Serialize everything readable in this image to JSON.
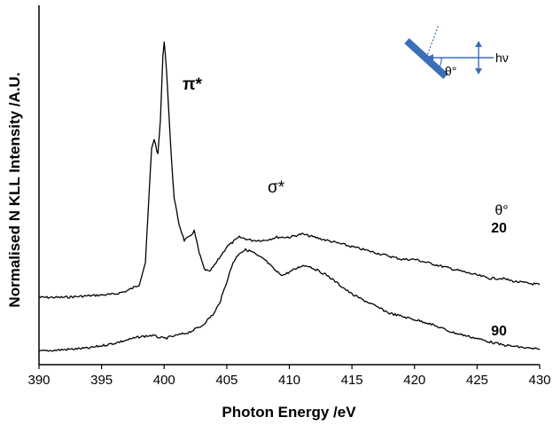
{
  "chart_data": {
    "type": "line",
    "xlabel": "Photon Energy /eV",
    "ylabel": "Normalised N KLL Intensity /A.U.",
    "xlim": [
      390,
      430
    ],
    "xticks": [
      390,
      395,
      400,
      405,
      410,
      415,
      420,
      425,
      430
    ],
    "yticks_shown": false,
    "grid": false,
    "legend_title": "θ°",
    "annotations": {
      "pi_star": "π*",
      "sigma_star": "σ*",
      "inset_angle": "θ°",
      "inset_photon": "hν"
    },
    "colors": {
      "line": "#000000",
      "inset_sample": "#3a6fb8",
      "inset_beam": "#3a6fb8"
    },
    "series": [
      {
        "name": "20",
        "x": [
          390,
          392,
          394,
          396,
          397,
          398,
          398.5,
          398.8,
          399.0,
          399.2,
          399.5,
          399.7,
          399.9,
          400.0,
          400.2,
          400.5,
          400.8,
          401.2,
          401.6,
          402.0,
          402.4,
          402.8,
          403.2,
          403.6,
          404.0,
          404.5,
          405,
          406,
          407,
          408,
          409,
          410,
          411,
          412,
          413,
          414,
          415,
          416,
          417,
          418,
          419,
          420,
          421,
          422,
          423,
          424,
          425,
          426,
          427,
          428,
          429,
          430
        ],
        "y": [
          0.19,
          0.19,
          0.195,
          0.2,
          0.21,
          0.23,
          0.3,
          0.52,
          0.66,
          0.69,
          0.64,
          0.75,
          0.95,
          1.0,
          0.9,
          0.68,
          0.5,
          0.42,
          0.37,
          0.38,
          0.4,
          0.33,
          0.28,
          0.27,
          0.29,
          0.32,
          0.35,
          0.38,
          0.37,
          0.37,
          0.38,
          0.38,
          0.39,
          0.38,
          0.37,
          0.36,
          0.35,
          0.34,
          0.33,
          0.32,
          0.31,
          0.31,
          0.3,
          0.29,
          0.28,
          0.27,
          0.26,
          0.25,
          0.25,
          0.24,
          0.235,
          0.23
        ]
      },
      {
        "name": "90",
        "x": [
          390,
          392,
          394,
          396,
          397,
          398,
          399,
          400,
          401,
          402,
          403,
          404,
          404.5,
          405,
          405.5,
          406,
          406.5,
          407,
          407.5,
          408,
          408.5,
          409,
          409.5,
          410,
          410.5,
          411,
          411.5,
          412,
          413,
          414,
          415,
          416,
          417,
          418,
          419,
          420,
          421,
          422,
          423,
          424,
          425,
          426,
          427,
          428,
          429,
          430
        ],
        "y": [
          0.02,
          0.025,
          0.03,
          0.045,
          0.055,
          0.065,
          0.07,
          0.06,
          0.07,
          0.08,
          0.1,
          0.14,
          0.18,
          0.24,
          0.3,
          0.33,
          0.34,
          0.335,
          0.32,
          0.31,
          0.29,
          0.27,
          0.26,
          0.27,
          0.28,
          0.29,
          0.29,
          0.28,
          0.26,
          0.23,
          0.2,
          0.18,
          0.16,
          0.14,
          0.13,
          0.12,
          0.11,
          0.095,
          0.08,
          0.07,
          0.06,
          0.05,
          0.04,
          0.035,
          0.03,
          0.025
        ]
      }
    ]
  }
}
